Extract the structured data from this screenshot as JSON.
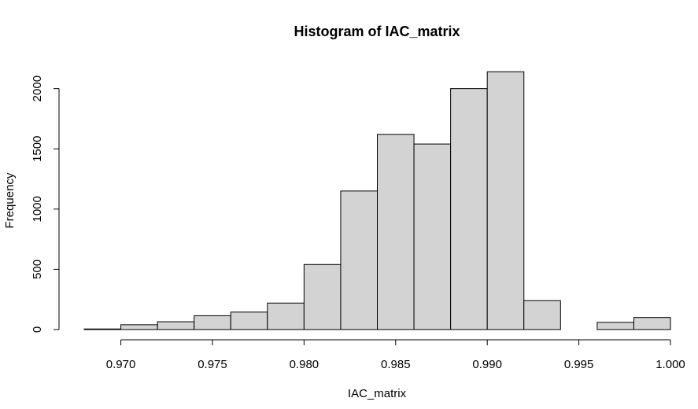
{
  "chart_data": {
    "type": "bar",
    "title": "Histogram of IAC_matrix",
    "xlabel": "IAC_matrix",
    "ylabel": "Frequency",
    "xlim": [
      0.968,
      1.0
    ],
    "ylim": [
      0,
      2200
    ],
    "x_ticks": [
      0.97,
      0.975,
      0.98,
      0.985,
      0.99,
      0.995,
      1.0
    ],
    "x_tick_labels": [
      "0.970",
      "0.975",
      "0.980",
      "0.985",
      "0.990",
      "0.995",
      "1.000"
    ],
    "y_ticks": [
      0,
      500,
      1000,
      1500,
      2000
    ],
    "y_tick_labels": [
      "0",
      "500",
      "1000",
      "1500",
      "2000"
    ],
    "bins": [
      {
        "start": 0.968,
        "end": 0.97,
        "count": 5
      },
      {
        "start": 0.97,
        "end": 0.972,
        "count": 40
      },
      {
        "start": 0.972,
        "end": 0.974,
        "count": 65
      },
      {
        "start": 0.974,
        "end": 0.976,
        "count": 115
      },
      {
        "start": 0.976,
        "end": 0.978,
        "count": 145
      },
      {
        "start": 0.978,
        "end": 0.98,
        "count": 220
      },
      {
        "start": 0.98,
        "end": 0.982,
        "count": 540
      },
      {
        "start": 0.982,
        "end": 0.984,
        "count": 1150
      },
      {
        "start": 0.984,
        "end": 0.986,
        "count": 1620
      },
      {
        "start": 0.986,
        "end": 0.988,
        "count": 1540
      },
      {
        "start": 0.988,
        "end": 0.99,
        "count": 2000
      },
      {
        "start": 0.99,
        "end": 0.992,
        "count": 2140
      },
      {
        "start": 0.992,
        "end": 0.994,
        "count": 240
      },
      {
        "start": 0.994,
        "end": 0.996,
        "count": 0
      },
      {
        "start": 0.996,
        "end": 0.998,
        "count": 60
      },
      {
        "start": 0.998,
        "end": 1.0,
        "count": 100
      }
    ],
    "bar_fill": "#d3d3d3",
    "bar_stroke": "#000000",
    "grid": false
  }
}
